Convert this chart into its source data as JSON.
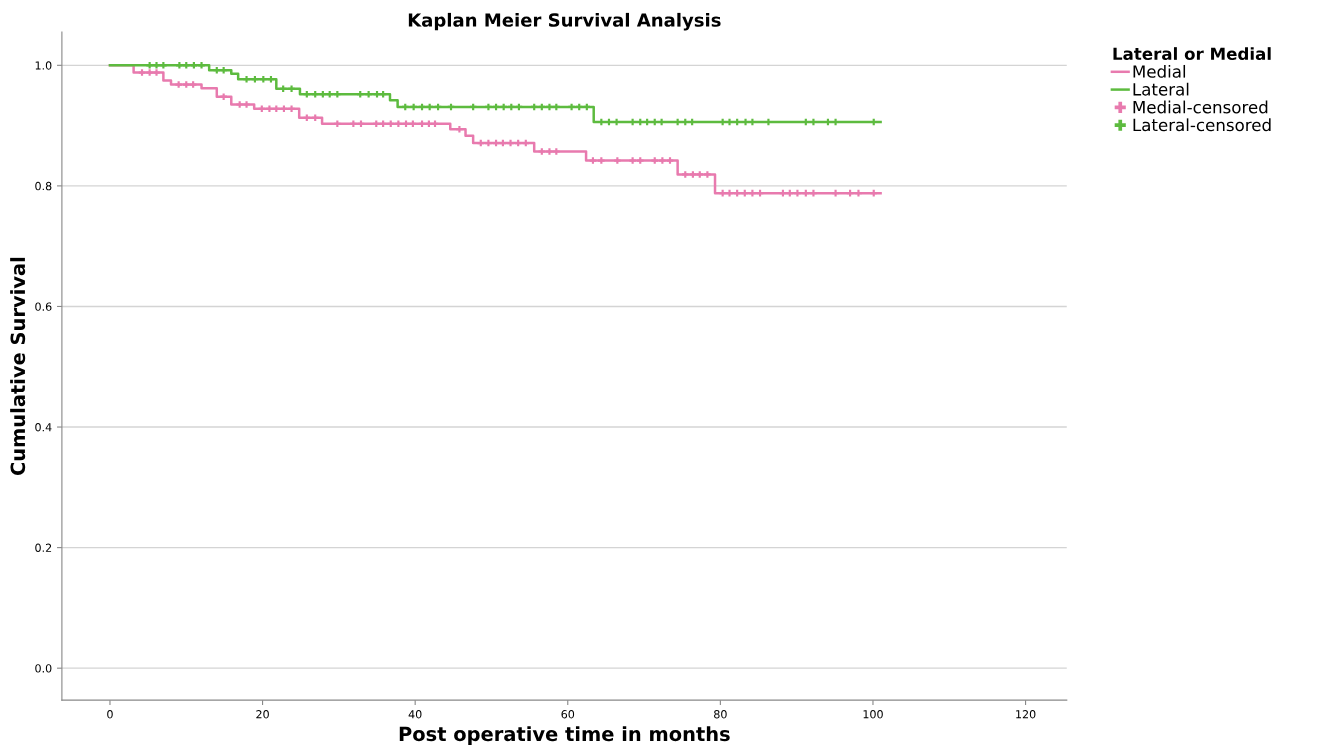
{
  "chart_data": {
    "type": "step",
    "title": "Kaplan Meier Survival Analysis",
    "xlabel": "Post operative time in months",
    "ylabel": "Cumulative Survival",
    "legend_title": "Lateral or Medial",
    "series": [
      {
        "name": "Medial",
        "color": "#e87aae",
        "x": [
          0,
          3.1,
          7.0,
          8.0,
          12.0,
          14.0,
          15.9,
          18.9,
          24.8,
          27.8,
          44.6,
          46.6,
          47.6,
          55.6,
          62.4,
          74.4,
          79.3,
          101
        ],
        "values": [
          1.0,
          0.988,
          0.975,
          0.968,
          0.962,
          0.948,
          0.935,
          0.928,
          0.913,
          0.903,
          0.894,
          0.883,
          0.871,
          0.857,
          0.842,
          0.819,
          0.788,
          0.788
        ]
      },
      {
        "name": "Lateral",
        "color": "#5dbb3f",
        "x": [
          0,
          13.0,
          15.9,
          16.8,
          21.8,
          24.9,
          36.7,
          37.7,
          63.4,
          101
        ],
        "values": [
          1.0,
          0.992,
          0.986,
          0.977,
          0.961,
          0.952,
          0.942,
          0.931,
          0.906,
          0.906
        ]
      },
      {
        "name": "Medial-censored",
        "type": "scatter",
        "marker": "cross",
        "color": "#e87aae",
        "x": [
          4.2,
          5.2,
          6.1,
          9.0,
          10.0,
          10.9,
          14.9,
          17.0,
          17.9,
          19.9,
          20.9,
          21.8,
          22.8,
          23.8,
          25.8,
          26.9,
          29.8,
          31.9,
          32.9,
          34.9,
          35.8,
          36.8,
          37.8,
          38.8,
          39.7,
          40.9,
          41.8,
          42.6,
          45.8,
          48.6,
          49.6,
          50.6,
          51.5,
          52.5,
          53.5,
          54.5,
          56.6,
          57.6,
          58.5,
          63.3,
          64.4,
          66.5,
          68.5,
          69.5,
          71.4,
          72.4,
          73.4,
          75.4,
          76.4,
          77.3,
          78.3,
          80.3,
          81.2,
          82.2,
          83.2,
          84.2,
          85.2,
          88.2,
          89.1,
          90.1,
          91.2,
          92.2,
          95.1,
          97.0,
          98.1,
          100.1
        ],
        "values": [
          0.988,
          0.988,
          0.988,
          0.968,
          0.968,
          0.968,
          0.948,
          0.935,
          0.935,
          0.928,
          0.928,
          0.928,
          0.928,
          0.928,
          0.913,
          0.913,
          0.903,
          0.903,
          0.903,
          0.903,
          0.903,
          0.903,
          0.903,
          0.903,
          0.903,
          0.903,
          0.903,
          0.903,
          0.894,
          0.871,
          0.871,
          0.871,
          0.871,
          0.871,
          0.871,
          0.871,
          0.857,
          0.857,
          0.857,
          0.842,
          0.842,
          0.842,
          0.842,
          0.842,
          0.842,
          0.842,
          0.842,
          0.819,
          0.819,
          0.819,
          0.819,
          0.788,
          0.788,
          0.788,
          0.788,
          0.788,
          0.788,
          0.788,
          0.788,
          0.788,
          0.788,
          0.788,
          0.788,
          0.788,
          0.788,
          0.788
        ]
      },
      {
        "name": "Lateral-censored",
        "type": "scatter",
        "marker": "cross",
        "color": "#5dbb3f",
        "x": [
          5.2,
          6.1,
          7.0,
          9.1,
          10.0,
          11.0,
          12.0,
          14.0,
          14.9,
          17.9,
          19.0,
          20.1,
          21.1,
          22.7,
          23.8,
          25.8,
          26.9,
          27.9,
          28.8,
          29.8,
          32.8,
          33.9,
          35.0,
          35.8,
          38.7,
          39.8,
          40.9,
          41.9,
          43.0,
          44.7,
          47.6,
          49.6,
          50.6,
          51.6,
          52.6,
          53.6,
          55.6,
          56.6,
          57.6,
          58.5,
          60.5,
          61.5,
          62.5,
          64.4,
          65.4,
          66.4,
          68.5,
          69.5,
          70.4,
          71.4,
          72.3,
          74.4,
          75.4,
          76.3,
          80.3,
          81.2,
          82.2,
          83.3,
          84.2,
          86.3,
          91.2,
          92.2,
          94.1,
          95.1,
          100.1
        ],
        "values": [
          1.0,
          1.0,
          1.0,
          1.0,
          1.0,
          1.0,
          1.0,
          0.992,
          0.992,
          0.977,
          0.977,
          0.977,
          0.977,
          0.961,
          0.961,
          0.952,
          0.952,
          0.952,
          0.952,
          0.952,
          0.952,
          0.952,
          0.952,
          0.952,
          0.931,
          0.931,
          0.931,
          0.931,
          0.931,
          0.931,
          0.931,
          0.931,
          0.931,
          0.931,
          0.931,
          0.931,
          0.931,
          0.931,
          0.931,
          0.931,
          0.931,
          0.931,
          0.931,
          0.906,
          0.906,
          0.906,
          0.906,
          0.906,
          0.906,
          0.906,
          0.906,
          0.906,
          0.906,
          0.906,
          0.906,
          0.906,
          0.906,
          0.906,
          0.906,
          0.906,
          0.906,
          0.906,
          0.906,
          0.906,
          0.906
        ]
      }
    ],
    "xlim": [
      -6.3,
      125.4
    ],
    "xticks": [
      0,
      20,
      40,
      60,
      80,
      100,
      120
    ],
    "ylim": [
      -0.053,
      1.055
    ],
    "yticks": [
      {
        "value": 0,
        "label": "0.0"
      },
      {
        "value": 0.2,
        "label": "0.2"
      },
      {
        "value": 0.4,
        "label": "0.4"
      },
      {
        "value": 0.6,
        "label": "0.6"
      },
      {
        "value": 0.8,
        "label": "0.8"
      },
      {
        "value": 1,
        "label": "1.0"
      }
    ],
    "grid": "y",
    "legend": "right"
  }
}
